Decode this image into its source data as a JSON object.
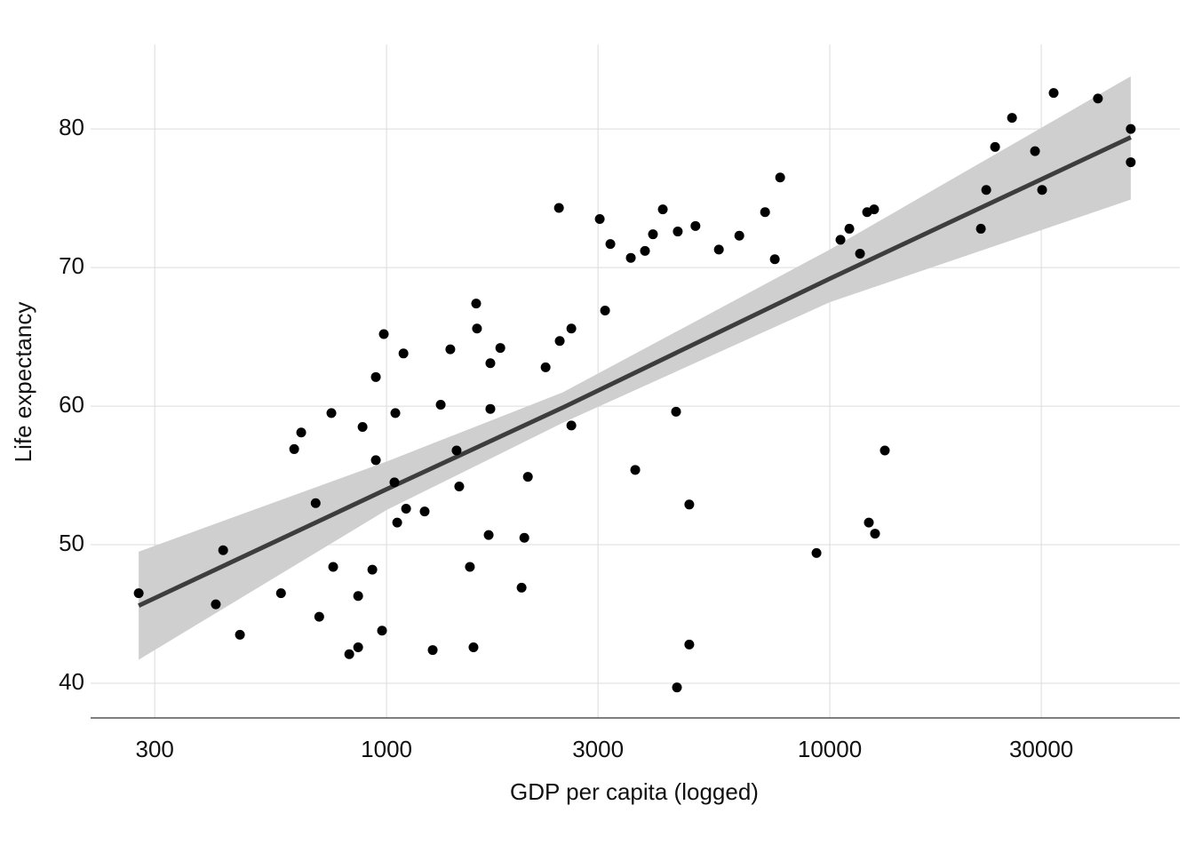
{
  "chart_data": {
    "type": "scatter",
    "xlabel": "GDP per capita (logged)",
    "ylabel": "Life expectancy",
    "xscale": "log",
    "grid": true,
    "color": "#000000",
    "xlim": [
      215,
      61600
    ],
    "ylim": [
      37.5,
      86.1
    ],
    "xticks": [
      300,
      1000,
      3000,
      10000,
      30000
    ],
    "yticks": [
      40,
      50,
      60,
      70,
      80
    ],
    "x": [
      276,
      412,
      428,
      467,
      578,
      619,
      642,
      692,
      705,
      751,
      758,
      824,
      863,
      863,
      883,
      929,
      946,
      946,
      977,
      986,
      1042,
      1047,
      1057,
      1092,
      1107,
      1219,
      1271,
      1325,
      1393,
      1439,
      1459,
      1542,
      1571,
      1593,
      1600,
      1700,
      1715,
      1715,
      1806,
      2017,
      2046,
      2084,
      2285,
      2449,
      2459,
      2612,
      2612,
      3027,
      3112,
      3199,
      3557,
      3640,
      3829,
      3991,
      4200,
      4500,
      4521,
      4540,
      4820,
      4820,
      4977,
      5620,
      6250,
      7145,
      7515,
      7727,
      9333,
      10570,
      11070,
      11700,
      12140,
      12250,
      12590,
      12650,
      13310,
      21920,
      22540,
      23600,
      25770,
      29040,
      30130,
      31990,
      40260,
      47750,
      47750
    ],
    "y": [
      46.5,
      45.7,
      49.6,
      43.5,
      46.5,
      56.9,
      58.1,
      53.0,
      44.8,
      59.5,
      48.4,
      42.1,
      42.6,
      46.3,
      58.5,
      48.2,
      62.1,
      56.1,
      43.8,
      65.2,
      54.5,
      59.5,
      51.6,
      63.8,
      52.6,
      52.4,
      42.4,
      60.1,
      64.1,
      56.8,
      54.2,
      48.4,
      42.6,
      67.4,
      65.6,
      50.7,
      63.1,
      59.8,
      64.2,
      46.9,
      50.5,
      54.9,
      62.8,
      74.3,
      64.7,
      65.6,
      58.6,
      73.5,
      66.9,
      71.7,
      70.7,
      55.4,
      71.2,
      72.4,
      74.2,
      59.6,
      39.7,
      72.6,
      52.9,
      42.8,
      73.0,
      71.3,
      72.3,
      74.0,
      70.6,
      76.5,
      49.4,
      72.0,
      72.8,
      71.0,
      74.0,
      51.6,
      74.2,
      50.8,
      56.8,
      72.8,
      75.6,
      78.7,
      80.8,
      78.4,
      75.6,
      82.6,
      82.2,
      80.0,
      77.6
    ],
    "fit": {
      "color": "#3d3d3d",
      "band_color": "#cfcfcf",
      "x": [
        276,
        1000,
        2500,
        10000,
        47750
      ],
      "y": [
        45.6,
        54.0,
        59.9,
        69.2,
        79.4
      ],
      "lower": [
        41.7,
        52.5,
        58.8,
        67.5,
        74.9
      ],
      "upper": [
        49.5,
        56.0,
        61.0,
        71.3,
        83.8
      ]
    }
  }
}
